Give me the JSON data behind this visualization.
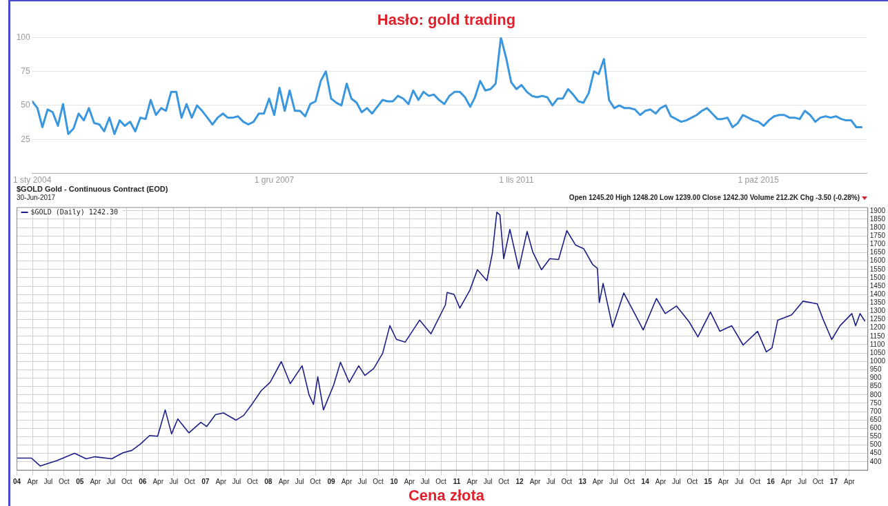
{
  "chart_data": [
    {
      "type": "line",
      "title": "Hasło: gold trading",
      "grid": "y",
      "marker": "none",
      "line_style": "solid",
      "xlim": [
        "2004-01-01",
        "2017-07-01"
      ],
      "ylim": [
        0,
        100
      ],
      "yticks": [
        25,
        50,
        75,
        100
      ],
      "xticks": [
        {
          "value": "2004-01-01",
          "label": "1 sty 2004"
        },
        {
          "value": "2007-12-01",
          "label": "1 gru 2007"
        },
        {
          "value": "2011-11-01",
          "label": "1 lis 2011"
        },
        {
          "value": "2015-10-01",
          "label": "1 paź 2015"
        }
      ],
      "x": [
        "2004-01",
        "2004-02",
        "2004-03",
        "2004-04",
        "2004-05",
        "2004-06",
        "2004-07",
        "2004-08",
        "2004-09",
        "2004-10",
        "2004-11",
        "2004-12",
        "2005-01",
        "2005-02",
        "2005-03",
        "2005-04",
        "2005-05",
        "2005-06",
        "2005-07",
        "2005-08",
        "2005-09",
        "2005-10",
        "2005-11",
        "2005-12",
        "2006-01",
        "2006-02",
        "2006-03",
        "2006-04",
        "2006-05",
        "2006-06",
        "2006-07",
        "2006-08",
        "2006-09",
        "2006-10",
        "2006-11",
        "2006-12",
        "2007-01",
        "2007-02",
        "2007-03",
        "2007-04",
        "2007-05",
        "2007-06",
        "2007-07",
        "2007-08",
        "2007-09",
        "2007-10",
        "2007-11",
        "2007-12",
        "2008-01",
        "2008-02",
        "2008-03",
        "2008-04",
        "2008-05",
        "2008-06",
        "2008-07",
        "2008-08",
        "2008-09",
        "2008-10",
        "2008-11",
        "2008-12",
        "2009-01",
        "2009-02",
        "2009-03",
        "2009-04",
        "2009-05",
        "2009-06",
        "2009-07",
        "2009-08",
        "2009-09",
        "2009-10",
        "2009-11",
        "2009-12",
        "2010-01",
        "2010-02",
        "2010-03",
        "2010-04",
        "2010-05",
        "2010-06",
        "2010-07",
        "2010-08",
        "2010-09",
        "2010-10",
        "2010-11",
        "2010-12",
        "2011-01",
        "2011-02",
        "2011-03",
        "2011-04",
        "2011-05",
        "2011-06",
        "2011-07",
        "2011-08",
        "2011-09",
        "2011-10",
        "2011-11",
        "2011-12",
        "2012-01",
        "2012-02",
        "2012-03",
        "2012-04",
        "2012-05",
        "2012-06",
        "2012-07",
        "2012-08",
        "2012-09",
        "2012-10",
        "2012-11",
        "2012-12",
        "2013-01",
        "2013-02",
        "2013-03",
        "2013-04",
        "2013-05",
        "2013-06",
        "2013-07",
        "2013-08",
        "2013-09",
        "2013-10",
        "2013-11",
        "2013-12",
        "2014-01",
        "2014-02",
        "2014-03",
        "2014-04",
        "2014-05",
        "2014-06",
        "2014-07",
        "2014-08",
        "2014-09",
        "2014-10",
        "2014-11",
        "2014-12",
        "2015-01",
        "2015-02",
        "2015-03",
        "2015-04",
        "2015-05",
        "2015-06",
        "2015-07",
        "2015-08",
        "2015-09",
        "2015-10",
        "2015-11",
        "2015-12",
        "2016-01",
        "2016-02",
        "2016-03",
        "2016-04",
        "2016-05",
        "2016-06",
        "2016-07",
        "2016-08",
        "2016-09",
        "2016-10",
        "2016-11",
        "2016-12",
        "2017-01",
        "2017-02",
        "2017-03",
        "2017-04",
        "2017-05",
        "2017-06"
      ],
      "series": [
        {
          "color": "#3a96dd",
          "values": [
            53,
            48,
            34,
            47,
            45,
            35,
            51,
            29,
            33,
            44,
            39,
            48,
            37,
            36,
            31,
            41,
            29,
            39,
            35,
            38,
            31,
            41,
            40,
            54,
            43,
            48,
            46,
            60,
            60,
            41,
            51,
            41,
            50,
            46,
            41,
            36,
            41,
            44,
            41,
            41,
            42,
            38,
            36,
            38,
            44,
            44,
            55,
            43,
            63,
            46,
            61,
            46,
            46,
            42,
            51,
            53,
            68,
            75,
            55,
            52,
            50,
            66,
            55,
            52,
            45,
            48,
            44,
            49,
            54,
            53,
            53,
            57,
            55,
            51,
            61,
            54,
            60,
            57,
            58,
            54,
            51,
            57,
            60,
            60,
            56,
            49,
            56,
            68,
            61,
            62,
            66,
            100,
            85,
            67,
            62,
            65,
            60,
            57,
            56,
            57,
            56,
            50,
            55,
            55,
            62,
            58,
            53,
            52,
            59,
            75,
            73,
            84,
            54,
            48,
            50,
            48,
            48,
            47,
            43,
            46,
            47,
            44,
            48,
            50,
            42,
            40,
            38,
            39,
            41,
            43,
            46,
            48,
            44,
            40,
            40,
            41,
            34,
            37,
            43,
            41,
            39,
            38,
            35,
            39,
            42,
            43,
            43,
            41,
            41,
            40,
            46,
            43,
            38,
            41,
            42,
            41,
            42,
            40,
            39,
            39,
            34,
            34
          ]
        }
      ]
    },
    {
      "type": "line",
      "title": "$GOLD Gold - Continuous Contract (EOD)",
      "subtitle": "30-Jun-2017",
      "annotations": [
        "Open 1245.20 High 1248.20 Low 1239.00 Close 1242.30 Volume 212.2K Chg -3.50 (-0.28%)",
        "Cena złota"
      ],
      "grid": true,
      "legend": "top left",
      "marker": "none",
      "line_style": "solid",
      "xlim": [
        "2004-01-01",
        "2017-07-18"
      ],
      "ylim": [
        350,
        1920
      ],
      "yticks": [
        400,
        450,
        500,
        550,
        600,
        650,
        700,
        750,
        800,
        850,
        900,
        950,
        1000,
        1050,
        1100,
        1150,
        1200,
        1250,
        1300,
        1350,
        1400,
        1450,
        1500,
        1550,
        1600,
        1650,
        1700,
        1750,
        1800,
        1850,
        1900
      ],
      "xticks": [
        {
          "value": "2004-01-01",
          "label": "04"
        },
        {
          "value": "2004-04-01",
          "label": "Apr"
        },
        {
          "value": "2004-07-01",
          "label": "Jul"
        },
        {
          "value": "2004-10-01",
          "label": "Oct"
        },
        {
          "value": "2005-01-01",
          "label": "05"
        },
        {
          "value": "2005-04-01",
          "label": "Apr"
        },
        {
          "value": "2005-07-01",
          "label": "Jul"
        },
        {
          "value": "2005-10-01",
          "label": "Oct"
        },
        {
          "value": "2006-01-01",
          "label": "06"
        },
        {
          "value": "2006-04-01",
          "label": "Apr"
        },
        {
          "value": "2006-07-01",
          "label": "Jul"
        },
        {
          "value": "2006-10-01",
          "label": "Oct"
        },
        {
          "value": "2007-01-01",
          "label": "07"
        },
        {
          "value": "2007-04-01",
          "label": "Apr"
        },
        {
          "value": "2007-07-01",
          "label": "Jul"
        },
        {
          "value": "2007-10-01",
          "label": "Oct"
        },
        {
          "value": "2008-01-01",
          "label": "08"
        },
        {
          "value": "2008-04-01",
          "label": "Apr"
        },
        {
          "value": "2008-07-01",
          "label": "Jul"
        },
        {
          "value": "2008-10-01",
          "label": "Oct"
        },
        {
          "value": "2009-01-01",
          "label": "09"
        },
        {
          "value": "2009-04-01",
          "label": "Apr"
        },
        {
          "value": "2009-07-01",
          "label": "Jul"
        },
        {
          "value": "2009-10-01",
          "label": "Oct"
        },
        {
          "value": "2010-01-01",
          "label": "10"
        },
        {
          "value": "2010-04-01",
          "label": "Apr"
        },
        {
          "value": "2010-07-01",
          "label": "Jul"
        },
        {
          "value": "2010-10-01",
          "label": "Oct"
        },
        {
          "value": "2011-01-01",
          "label": "11"
        },
        {
          "value": "2011-04-01",
          "label": "Apr"
        },
        {
          "value": "2011-07-01",
          "label": "Jul"
        },
        {
          "value": "2011-10-01",
          "label": "Oct"
        },
        {
          "value": "2012-01-01",
          "label": "12"
        },
        {
          "value": "2012-04-01",
          "label": "Apr"
        },
        {
          "value": "2012-07-01",
          "label": "Jul"
        },
        {
          "value": "2012-10-01",
          "label": "Oct"
        },
        {
          "value": "2013-01-01",
          "label": "13"
        },
        {
          "value": "2013-04-01",
          "label": "Apr"
        },
        {
          "value": "2013-07-01",
          "label": "Jul"
        },
        {
          "value": "2013-10-01",
          "label": "Oct"
        },
        {
          "value": "2014-01-01",
          "label": "14"
        },
        {
          "value": "2014-04-01",
          "label": "Apr"
        },
        {
          "value": "2014-07-01",
          "label": "Jul"
        },
        {
          "value": "2014-10-01",
          "label": "Oct"
        },
        {
          "value": "2015-01-01",
          "label": "15"
        },
        {
          "value": "2015-04-01",
          "label": "Apr"
        },
        {
          "value": "2015-07-01",
          "label": "Jul"
        },
        {
          "value": "2015-10-01",
          "label": "Oct"
        },
        {
          "value": "2016-01-01",
          "label": "16"
        },
        {
          "value": "2016-04-01",
          "label": "Apr"
        },
        {
          "value": "2016-07-01",
          "label": "Jul"
        },
        {
          "value": "2016-10-01",
          "label": "Oct"
        },
        {
          "value": "2017-01-01",
          "label": "17"
        },
        {
          "value": "2017-04-01",
          "label": "Apr"
        }
      ],
      "x": [
        "2004-01-02",
        "2004-03-25",
        "2004-05-15",
        "2004-08-22",
        "2004-12-01",
        "2005-02-06",
        "2005-03-29",
        "2005-07-05",
        "2005-09-09",
        "2005-10-30",
        "2005-12-20",
        "2006-02-10",
        "2006-03-29",
        "2006-05-12",
        "2006-06-18",
        "2006-07-24",
        "2006-09-27",
        "2006-12-05",
        "2007-01-08",
        "2007-02-28",
        "2007-04-16",
        "2007-06-28",
        "2007-08-11",
        "2007-10-01",
        "2007-11-21",
        "2008-01-12",
        "2008-03-17",
        "2008-05-08",
        "2008-07-16",
        "2008-08-25",
        "2008-09-20",
        "2008-10-15",
        "2008-11-17",
        "2009-01-15",
        "2009-02-24",
        "2009-04-16",
        "2009-06-10",
        "2009-07-16",
        "2009-09-05",
        "2009-10-27",
        "2009-12-08",
        "2010-01-15",
        "2010-03-07",
        "2010-05-30",
        "2010-08-04",
        "2010-10-27",
        "2010-11-06",
        "2010-12-16",
        "2011-01-19",
        "2011-03-18",
        "2011-05-01",
        "2011-06-25",
        "2011-07-27",
        "2011-08-22",
        "2011-09-09",
        "2011-10-01",
        "2011-11-06",
        "2011-12-28",
        "2012-02-14",
        "2012-03-18",
        "2012-05-08",
        "2012-06-25",
        "2012-08-15",
        "2012-10-02",
        "2012-11-22",
        "2013-01-08",
        "2013-02-28",
        "2013-03-29",
        "2013-04-09",
        "2013-05-01",
        "2013-06-25",
        "2013-08-29",
        "2013-10-19",
        "2013-12-20",
        "2014-03-07",
        "2014-04-27",
        "2014-07-02",
        "2014-09-13",
        "2014-11-03",
        "2015-01-15",
        "2015-03-11",
        "2015-05-19",
        "2015-07-24",
        "2015-10-16",
        "2015-12-06",
        "2016-01-08",
        "2016-02-10",
        "2016-05-01",
        "2016-07-06",
        "2016-09-27",
        "2016-10-30",
        "2016-12-20",
        "2017-02-06",
        "2017-04-16",
        "2017-05-08",
        "2017-06-03",
        "2017-06-30"
      ],
      "series": [
        {
          "name": "$GOLD (Daily) 1242.30",
          "color": "#1c1c86",
          "values": [
            422,
            422,
            375,
            408,
            451,
            418,
            430,
            418,
            454,
            468,
            507,
            557,
            553,
            710,
            567,
            656,
            573,
            636,
            611,
            682,
            692,
            649,
            677,
            748,
            825,
            875,
            999,
            867,
            974,
            801,
            743,
            908,
            710,
            858,
            995,
            875,
            974,
            916,
            957,
            1048,
            1214,
            1132,
            1115,
            1247,
            1165,
            1338,
            1412,
            1401,
            1319,
            1425,
            1548,
            1483,
            1646,
            1892,
            1875,
            1614,
            1789,
            1553,
            1777,
            1654,
            1548,
            1614,
            1609,
            1782,
            1695,
            1674,
            1581,
            1556,
            1352,
            1466,
            1205,
            1409,
            1311,
            1188,
            1376,
            1286,
            1331,
            1237,
            1147,
            1295,
            1180,
            1213,
            1098,
            1180,
            1057,
            1081,
            1246,
            1278,
            1360,
            1344,
            1254,
            1131,
            1213,
            1286,
            1213,
            1286,
            1242
          ]
        }
      ]
    }
  ]
}
